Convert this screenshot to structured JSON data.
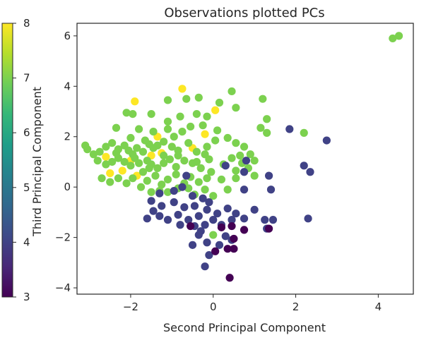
{
  "chart_data": {
    "type": "scatter",
    "title": "Observations plotted PCs",
    "xlabel": "Second Principal Component",
    "ylabel": "Third Principal Component",
    "xlim": [
      -3.3,
      4.85
    ],
    "ylim": [
      -4.25,
      6.5
    ],
    "xticks": [
      -2,
      0,
      2,
      4
    ],
    "xtick_labels": [
      "−2",
      "0",
      "2",
      "4"
    ],
    "yticks": [
      -4,
      -2,
      0,
      2,
      4,
      6
    ],
    "ytick_labels": [
      "−4",
      "−2",
      "0",
      "2",
      "4",
      "6"
    ],
    "grid": false,
    "legend": "none",
    "colorbar": {
      "placement": "left",
      "range": [
        3,
        8
      ],
      "ticks": [
        3,
        4,
        5,
        6,
        7,
        8
      ],
      "tick_labels": [
        "3",
        "4",
        "5",
        "6",
        "7",
        "8"
      ],
      "colormap": "viridis",
      "stops": [
        "#440154",
        "#482878",
        "#3e4989",
        "#31688e",
        "#26828e",
        "#1f9e89",
        "#35b779",
        "#6ece58",
        "#b5de2b",
        "#fde725"
      ]
    },
    "series": [
      {
        "color_value": 8,
        "points": [
          [
            -1.9,
            3.4
          ],
          [
            -0.75,
            3.9
          ],
          [
            0.05,
            3.05
          ],
          [
            -1.35,
            2.0
          ],
          [
            -0.2,
            2.1
          ],
          [
            -0.5,
            1.55
          ],
          [
            -1.25,
            1.35
          ],
          [
            -1.5,
            1.25
          ],
          [
            -2.6,
            1.2
          ],
          [
            -2.5,
            0.55
          ],
          [
            -2.2,
            0.65
          ],
          [
            -1.85,
            0.45
          ],
          [
            -2.0,
            1.05
          ]
        ]
      },
      {
        "color_value": 7,
        "points": [
          [
            4.35,
            5.9
          ],
          [
            4.5,
            6.0
          ],
          [
            -1.1,
            3.45
          ],
          [
            -0.35,
            3.55
          ],
          [
            0.45,
            3.8
          ],
          [
            1.2,
            3.5
          ],
          [
            0.15,
            3.35
          ],
          [
            -0.65,
            3.5
          ],
          [
            -2.1,
            2.95
          ],
          [
            -1.95,
            2.9
          ],
          [
            -1.5,
            2.9
          ],
          [
            -1.1,
            2.6
          ],
          [
            -0.8,
            2.8
          ],
          [
            -0.4,
            2.9
          ],
          [
            -0.15,
            2.8
          ],
          [
            0.55,
            3.15
          ],
          [
            1.3,
            2.7
          ],
          [
            1.15,
            2.35
          ],
          [
            1.3,
            2.15
          ],
          [
            2.2,
            2.15
          ],
          [
            -2.35,
            2.35
          ],
          [
            -1.8,
            2.3
          ],
          [
            -1.45,
            2.2
          ],
          [
            -1.1,
            2.3
          ],
          [
            -0.75,
            2.2
          ],
          [
            -0.55,
            2.4
          ],
          [
            -0.25,
            2.45
          ],
          [
            0.1,
            2.25
          ],
          [
            -3.1,
            1.65
          ],
          [
            -3.05,
            1.5
          ],
          [
            -2.9,
            1.3
          ],
          [
            -2.75,
            1.4
          ],
          [
            -2.6,
            1.6
          ],
          [
            -2.45,
            1.75
          ],
          [
            -2.3,
            1.5
          ],
          [
            -2.15,
            1.65
          ],
          [
            -2.05,
            1.45
          ],
          [
            -1.95,
            1.3
          ],
          [
            -1.85,
            1.55
          ],
          [
            -1.7,
            1.4
          ],
          [
            -1.55,
            1.7
          ],
          [
            -1.45,
            1.55
          ],
          [
            -1.35,
            1.65
          ],
          [
            -1.2,
            1.8
          ],
          [
            -1.0,
            1.6
          ],
          [
            -0.85,
            1.45
          ],
          [
            -0.6,
            1.75
          ],
          [
            -0.4,
            1.4
          ],
          [
            -0.15,
            1.6
          ],
          [
            0.05,
            1.85
          ],
          [
            0.35,
            1.95
          ],
          [
            0.55,
            1.75
          ],
          [
            0.75,
            1.6
          ],
          [
            0.9,
            1.3
          ],
          [
            -2.8,
            1.05
          ],
          [
            -2.6,
            0.9
          ],
          [
            -2.45,
            1.0
          ],
          [
            -2.3,
            1.15
          ],
          [
            -2.15,
            1.0
          ],
          [
            -2.0,
            0.85
          ],
          [
            -1.8,
            0.95
          ],
          [
            -1.6,
            1.05
          ],
          [
            -1.5,
            0.9
          ],
          [
            -1.35,
            0.75
          ],
          [
            -1.2,
            0.95
          ],
          [
            -1.05,
            1.1
          ],
          [
            -0.9,
            0.8
          ],
          [
            -0.7,
            1.05
          ],
          [
            -0.5,
            0.95
          ],
          [
            -0.3,
            0.75
          ],
          [
            -0.1,
            1.1
          ],
          [
            0.25,
            0.9
          ],
          [
            0.45,
            1.15
          ],
          [
            0.7,
            0.95
          ],
          [
            0.55,
            0.65
          ],
          [
            0.85,
            0.75
          ],
          [
            1.0,
            0.45
          ],
          [
            -2.7,
            0.35
          ],
          [
            -2.5,
            0.2
          ],
          [
            -2.3,
            0.35
          ],
          [
            -2.1,
            0.15
          ],
          [
            -1.95,
            0.35
          ],
          [
            -1.75,
            0.0
          ],
          [
            -1.6,
            0.25
          ],
          [
            -1.4,
            0.45
          ],
          [
            -1.25,
            0.1
          ],
          [
            -1.1,
            0.3
          ],
          [
            -0.9,
            0.5
          ],
          [
            -0.7,
            0.15
          ],
          [
            -0.55,
            0.4
          ],
          [
            -0.35,
            0.2
          ],
          [
            -0.15,
            0.35
          ],
          [
            -0.05,
            0.6
          ],
          [
            0.2,
            0.3
          ],
          [
            0.35,
            -0.1
          ],
          [
            0.55,
            0.35
          ],
          [
            -1.5,
            -0.2
          ],
          [
            -1.3,
            -0.15
          ],
          [
            -1.1,
            -0.2
          ],
          [
            -0.85,
            -0.05
          ],
          [
            -0.45,
            -0.3
          ],
          [
            -0.2,
            -0.1
          ],
          [
            0.0,
            -0.35
          ],
          [
            -1.2,
            1.25
          ],
          [
            -1.65,
            1.85
          ],
          [
            -0.95,
            2.0
          ],
          [
            0.65,
            1.25
          ],
          [
            1.0,
            1.05
          ],
          [
            -0.2,
            1.3
          ],
          [
            -0.4,
            1.0
          ],
          [
            -2.35,
            1.35
          ],
          [
            -0.85,
            1.25
          ],
          [
            0.0,
            -1.9
          ],
          [
            -0.6,
            -0.05
          ],
          [
            -2.0,
            1.95
          ],
          [
            -1.9,
            1.15
          ],
          [
            -1.7,
            0.6
          ],
          [
            -1.55,
            0.75
          ]
        ]
      },
      {
        "color_value": 4,
        "points": [
          [
            1.85,
            2.3
          ],
          [
            2.75,
            1.85
          ],
          [
            0.8,
            1.05
          ],
          [
            0.3,
            0.85
          ],
          [
            2.2,
            0.85
          ],
          [
            2.35,
            0.6
          ],
          [
            0.75,
            0.6
          ],
          [
            1.35,
            0.45
          ],
          [
            -0.65,
            0.45
          ],
          [
            -0.75,
            0.0
          ],
          [
            -0.95,
            -0.15
          ],
          [
            -1.3,
            -0.25
          ],
          [
            -0.5,
            -0.35
          ],
          [
            -0.25,
            -0.45
          ],
          [
            0.75,
            -0.1
          ],
          [
            1.4,
            -0.1
          ],
          [
            -1.5,
            -0.55
          ],
          [
            -1.25,
            -0.75
          ],
          [
            -0.95,
            -0.6
          ],
          [
            -0.7,
            -0.8
          ],
          [
            -0.45,
            -0.75
          ],
          [
            -0.1,
            -0.6
          ],
          [
            -1.45,
            -0.95
          ],
          [
            -1.3,
            -1.15
          ],
          [
            -1.1,
            -1.3
          ],
          [
            -0.85,
            -1.1
          ],
          [
            -0.6,
            -1.3
          ],
          [
            -0.35,
            -1.15
          ],
          [
            -0.15,
            -0.9
          ],
          [
            0.1,
            -1.05
          ],
          [
            0.35,
            -0.85
          ],
          [
            0.55,
            -1.05
          ],
          [
            0.75,
            -1.25
          ],
          [
            1.0,
            -0.9
          ],
          [
            1.25,
            -1.3
          ],
          [
            1.45,
            -1.3
          ],
          [
            2.3,
            -1.25
          ],
          [
            -0.8,
            -1.5
          ],
          [
            -0.45,
            -1.55
          ],
          [
            -0.2,
            -1.5
          ],
          [
            0.0,
            -1.3
          ],
          [
            0.2,
            -1.5
          ],
          [
            0.45,
            -1.3
          ],
          [
            -0.35,
            -1.9
          ],
          [
            -0.15,
            -2.2
          ],
          [
            0.15,
            -2.3
          ],
          [
            0.3,
            -1.95
          ],
          [
            -0.5,
            -2.3
          ],
          [
            -0.1,
            -2.7
          ],
          [
            -0.2,
            -3.15
          ],
          [
            0.45,
            -2.1
          ],
          [
            -1.6,
            -1.25
          ],
          [
            1.3,
            -1.65
          ],
          [
            -0.3,
            -1.75
          ]
        ]
      },
      {
        "color_value": 3,
        "points": [
          [
            -0.55,
            -1.55
          ],
          [
            0.2,
            -1.6
          ],
          [
            0.45,
            -1.55
          ],
          [
            0.75,
            -1.7
          ],
          [
            1.35,
            -1.65
          ],
          [
            0.5,
            -2.05
          ],
          [
            0.35,
            -2.45
          ],
          [
            0.05,
            -2.55
          ],
          [
            0.5,
            -2.45
          ],
          [
            0.4,
            -3.6
          ]
        ]
      }
    ]
  }
}
